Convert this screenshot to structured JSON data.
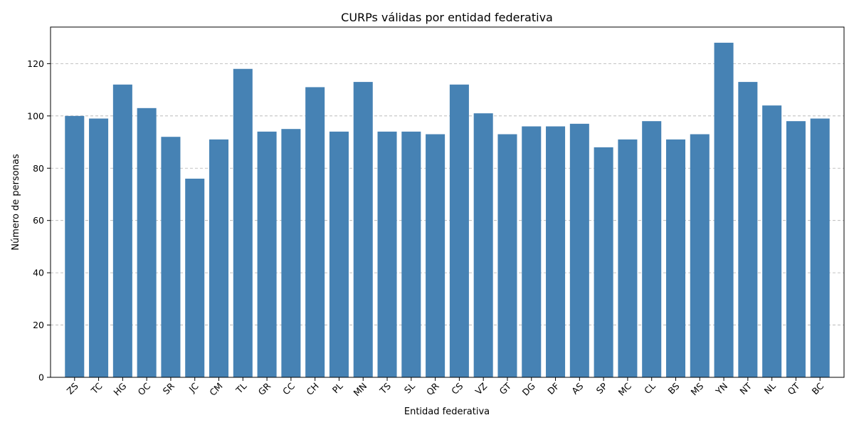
{
  "chart_data": {
    "type": "bar",
    "title": "CURPs válidas por entidad federativa",
    "xlabel": "Entidad federativa",
    "ylabel": "Número de personas",
    "categories": [
      "ZS",
      "TC",
      "HG",
      "OC",
      "SR",
      "JC",
      "CM",
      "TL",
      "GR",
      "CC",
      "CH",
      "PL",
      "MN",
      "TS",
      "SL",
      "QR",
      "CS",
      "VZ",
      "GT",
      "DG",
      "DF",
      "AS",
      "SP",
      "MC",
      "CL",
      "BS",
      "MS",
      "YN",
      "NT",
      "NL",
      "QT",
      "BC"
    ],
    "values": [
      100,
      99,
      112,
      103,
      92,
      76,
      91,
      118,
      94,
      95,
      111,
      94,
      113,
      94,
      94,
      93,
      112,
      101,
      93,
      96,
      96,
      97,
      88,
      91,
      98,
      91,
      93,
      128,
      113,
      104,
      98,
      99
    ],
    "ylim": [
      0,
      134
    ],
    "yticks": [
      0,
      20,
      40,
      60,
      80,
      100,
      120
    ],
    "bar_color": "#4682b4",
    "grid": "y-dashed",
    "xtick_rotation": 45
  }
}
